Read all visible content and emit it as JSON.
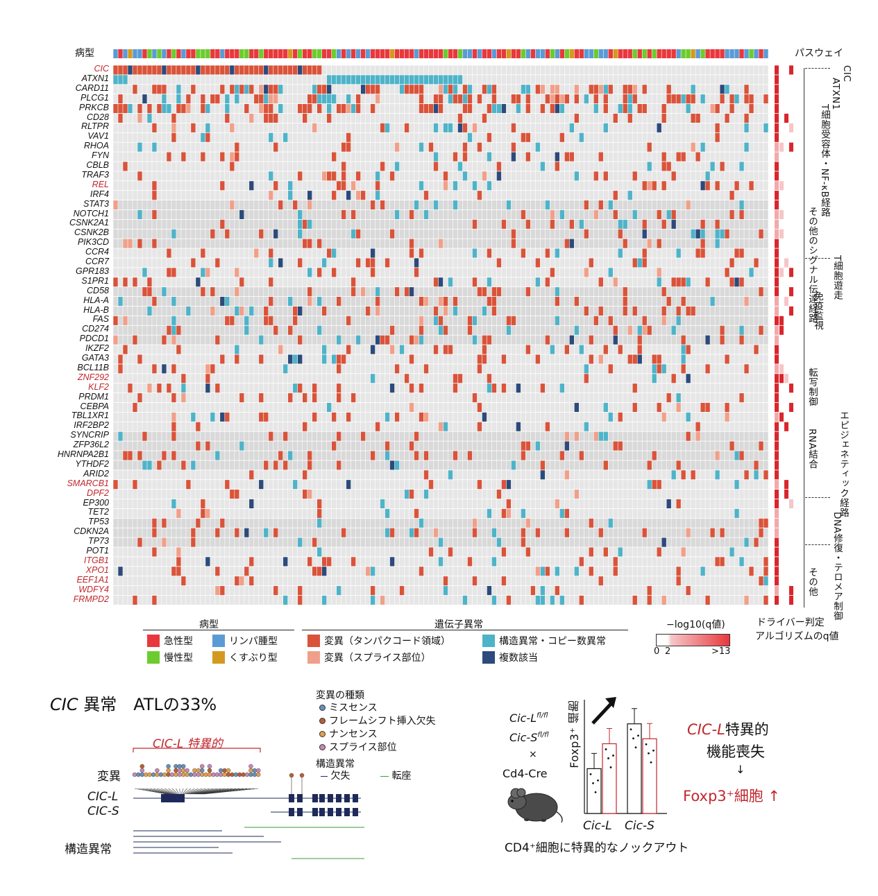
{
  "header": {
    "pathology_label": "病型",
    "pathway_label": "パスウェイ"
  },
  "genes": [
    {
      "name": "CIC",
      "red": true
    },
    {
      "name": "ATXN1",
      "red": false
    },
    {
      "name": "CARD11",
      "red": false
    },
    {
      "name": "PLCG1",
      "red": false
    },
    {
      "name": "PRKCB",
      "red": false
    },
    {
      "name": "CD28",
      "red": false
    },
    {
      "name": "RLTPR",
      "red": false
    },
    {
      "name": "VAV1",
      "red": false
    },
    {
      "name": "RHOA",
      "red": false
    },
    {
      "name": "FYN",
      "red": false
    },
    {
      "name": "CBLB",
      "red": false
    },
    {
      "name": "TRAF3",
      "red": false
    },
    {
      "name": "REL",
      "red": true
    },
    {
      "name": "IRF4",
      "red": false
    },
    {
      "name": "STAT3",
      "red": false
    },
    {
      "name": "NOTCH1",
      "red": false
    },
    {
      "name": "CSNK2A1",
      "red": false
    },
    {
      "name": "CSNK2B",
      "red": false
    },
    {
      "name": "PIK3CD",
      "red": false
    },
    {
      "name": "CCR4",
      "red": false
    },
    {
      "name": "CCR7",
      "red": false
    },
    {
      "name": "GPR183",
      "red": false
    },
    {
      "name": "S1PR1",
      "red": false
    },
    {
      "name": "CD58",
      "red": false
    },
    {
      "name": "HLA-A",
      "red": false
    },
    {
      "name": "HLA-B",
      "red": false
    },
    {
      "name": "FAS",
      "red": false
    },
    {
      "name": "CD274",
      "red": false
    },
    {
      "name": "PDCD1",
      "red": false
    },
    {
      "name": "IKZF2",
      "red": false
    },
    {
      "name": "GATA3",
      "red": false
    },
    {
      "name": "BCL11B",
      "red": false
    },
    {
      "name": "ZNF292",
      "red": true
    },
    {
      "name": "KLF2",
      "red": true
    },
    {
      "name": "PRDM1",
      "red": false
    },
    {
      "name": "CEBPA",
      "red": false
    },
    {
      "name": "TBL1XR1",
      "red": false
    },
    {
      "name": "IRF2BP2",
      "red": false
    },
    {
      "name": "SYNCRIP",
      "red": false
    },
    {
      "name": "ZFP36L2",
      "red": false
    },
    {
      "name": "HNRNPA2B1",
      "red": false
    },
    {
      "name": "YTHDF2",
      "red": false
    },
    {
      "name": "ARID2",
      "red": false
    },
    {
      "name": "SMARCB1",
      "red": true
    },
    {
      "name": "DPF2",
      "red": true
    },
    {
      "name": "EP300",
      "red": false
    },
    {
      "name": "TET2",
      "red": false
    },
    {
      "name": "TP53",
      "red": false
    },
    {
      "name": "CDKN2A",
      "red": false
    },
    {
      "name": "TP73",
      "red": false
    },
    {
      "name": "POT1",
      "red": false
    },
    {
      "name": "ITGB1",
      "red": true
    },
    {
      "name": "XPO1",
      "red": true
    },
    {
      "name": "EEF1A1",
      "red": true
    },
    {
      "name": "WDFY4",
      "red": true
    },
    {
      "name": "FRMPD2",
      "red": true
    }
  ],
  "pathways": [
    {
      "label": "CIC"
    },
    {
      "label": "ATXN1"
    },
    {
      "label": "T細胞受容体・NF-κB経路"
    },
    {
      "label": "その他のシグナル伝達経路"
    },
    {
      "label": "T細胞遊走"
    },
    {
      "label": "免疫監視"
    },
    {
      "label": "転写制御"
    },
    {
      "label": "RNA結合"
    },
    {
      "label": "エピジェネティック経路"
    },
    {
      "label": "DNA修復・テロメア制御"
    },
    {
      "label": "その他"
    }
  ],
  "legend": {
    "pathology_title": "病型",
    "pathology": [
      {
        "label": "急性型",
        "color": "#e8383d"
      },
      {
        "label": "リンパ腫型",
        "color": "#5b9bd5"
      },
      {
        "label": "慢性型",
        "color": "#6ccc2e"
      },
      {
        "label": "くすぶり型",
        "color": "#d49a1f"
      }
    ],
    "alteration_title": "遺伝子異常",
    "alterations": [
      {
        "label": "変異（タンパクコード領域）",
        "color": "#d9533a"
      },
      {
        "label": "構造異常・コピー数異常",
        "color": "#4fb3c8"
      },
      {
        "label": "変異（スプライス部位）",
        "color": "#f0a08a"
      },
      {
        "label": "複数該当",
        "color": "#2c4a7a"
      }
    ],
    "q_title": "−log10(q値)",
    "q_ticks": [
      "0",
      "2",
      ">13"
    ],
    "driver_title_1": "ドライバー判定",
    "driver_title_2": "アルゴリズムのq値"
  },
  "bottom_left": {
    "headline_gene": "CIC",
    "headline_rest": "異常　ATLの33%",
    "specific_label": "CIC-L 特異的",
    "mutation_row": "変異",
    "isoform_l": "CIC-L",
    "isoform_s": "CIC-S",
    "sv_row": "構造異常",
    "mutation_types_title": "変異の種類",
    "mutation_types": [
      {
        "label": "ミスセンス",
        "color": "#6a8fb5"
      },
      {
        "label": "フレームシフト挿入欠失",
        "color": "#b5603a"
      },
      {
        "label": "ナンセンス",
        "color": "#e0a050"
      },
      {
        "label": "スプライス部位",
        "color": "#c48ab5"
      }
    ],
    "sv_title": "構造異常",
    "deletion_label": "欠失",
    "translocation_label": "転座"
  },
  "bottom_right": {
    "genotype_1": "Cic-L",
    "genotype_1_sup": "fl/fl",
    "genotype_2": "Cic-S",
    "genotype_2_sup": "fl/fl",
    "cross": "×",
    "cre": "Cd4-Cre",
    "yaxis_label": "Foxp3⁺ 細胞",
    "group_1": "Cic-L",
    "group_2": "Cic-S",
    "ko_caption": "CD4⁺細胞に特異的なノックアウト",
    "conclusion_1": "CIC-L",
    "conclusion_1b": "特異的",
    "conclusion_2": "機能喪失",
    "conclusion_arrow": "↓",
    "conclusion_3": "Foxp3⁺細胞 ↑"
  },
  "chart_data": {
    "type": "bar",
    "categories": [
      "Cic-L",
      "Cic-S"
    ],
    "series": [
      {
        "values": [
          0.9,
          1.8
        ]
      },
      {
        "values": [
          1.4,
          1.5
        ]
      }
    ],
    "ylabel": "Foxp3⁺ 細胞"
  },
  "colors": {
    "mutation": "#d9533a",
    "structural": "#4fb3c8",
    "splice": "#f0a08a",
    "multiple": "#2c4a7a",
    "empty": "#e6e6e6",
    "accent_red": "#c0272d"
  }
}
